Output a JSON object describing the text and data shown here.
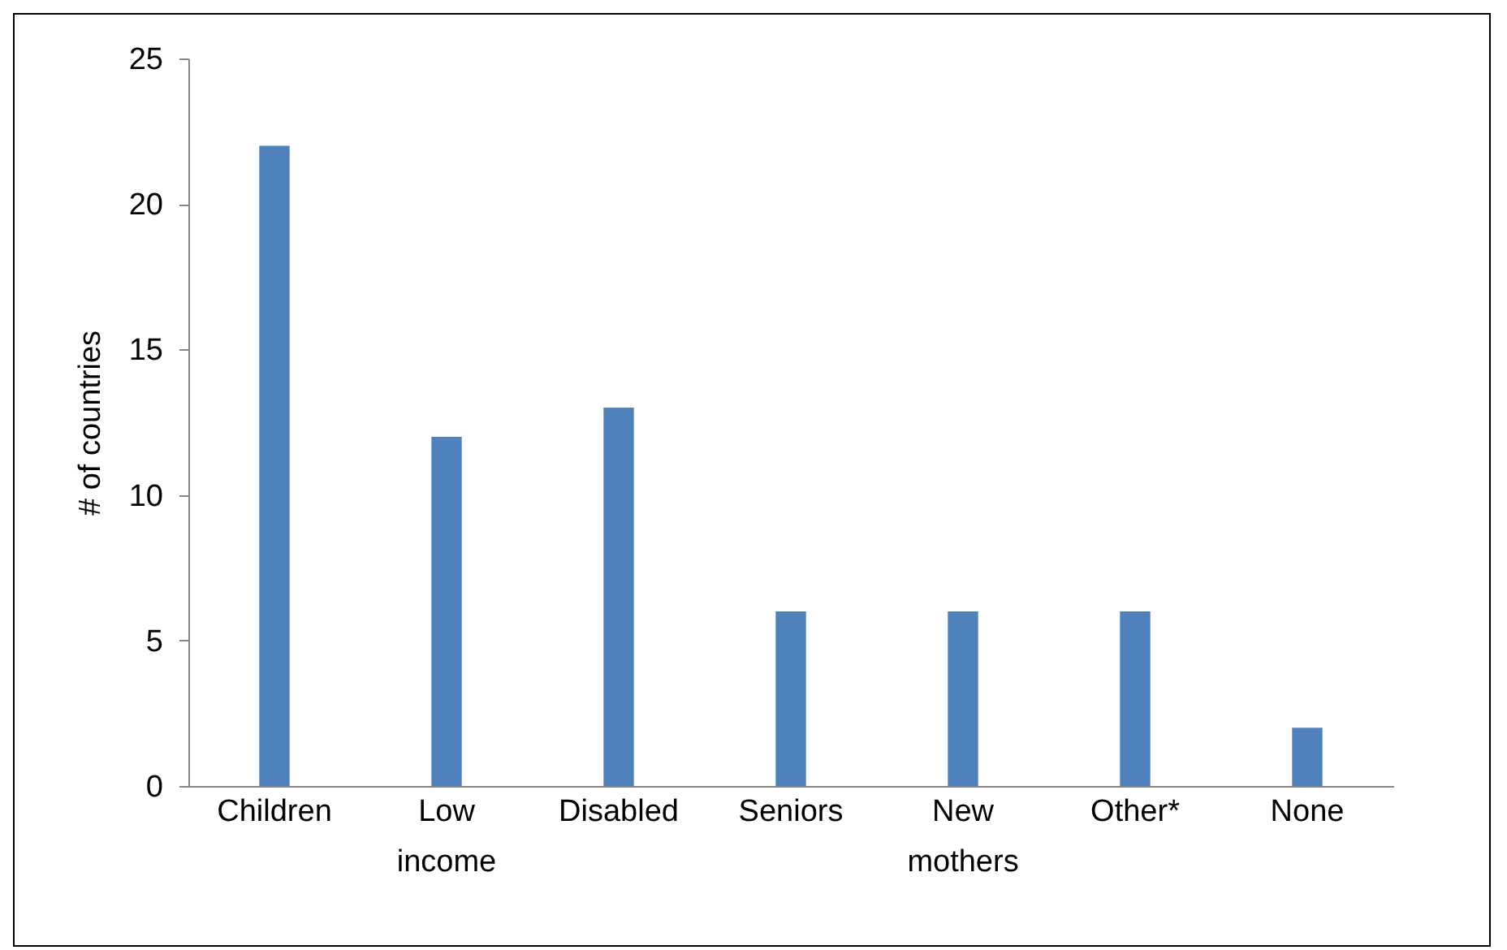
{
  "chart_data": {
    "type": "bar",
    "ylabel": "# of countries",
    "categories": [
      "Children",
      "Low income",
      "Disabled",
      "Seniors",
      "New mothers",
      "Other*",
      "None"
    ],
    "values": [
      22,
      12,
      13,
      6,
      6,
      6,
      2
    ],
    "color": "#4f81bd",
    "ylim": [
      0,
      25
    ],
    "yticks": [
      0,
      5,
      10,
      15,
      20,
      25
    ]
  }
}
